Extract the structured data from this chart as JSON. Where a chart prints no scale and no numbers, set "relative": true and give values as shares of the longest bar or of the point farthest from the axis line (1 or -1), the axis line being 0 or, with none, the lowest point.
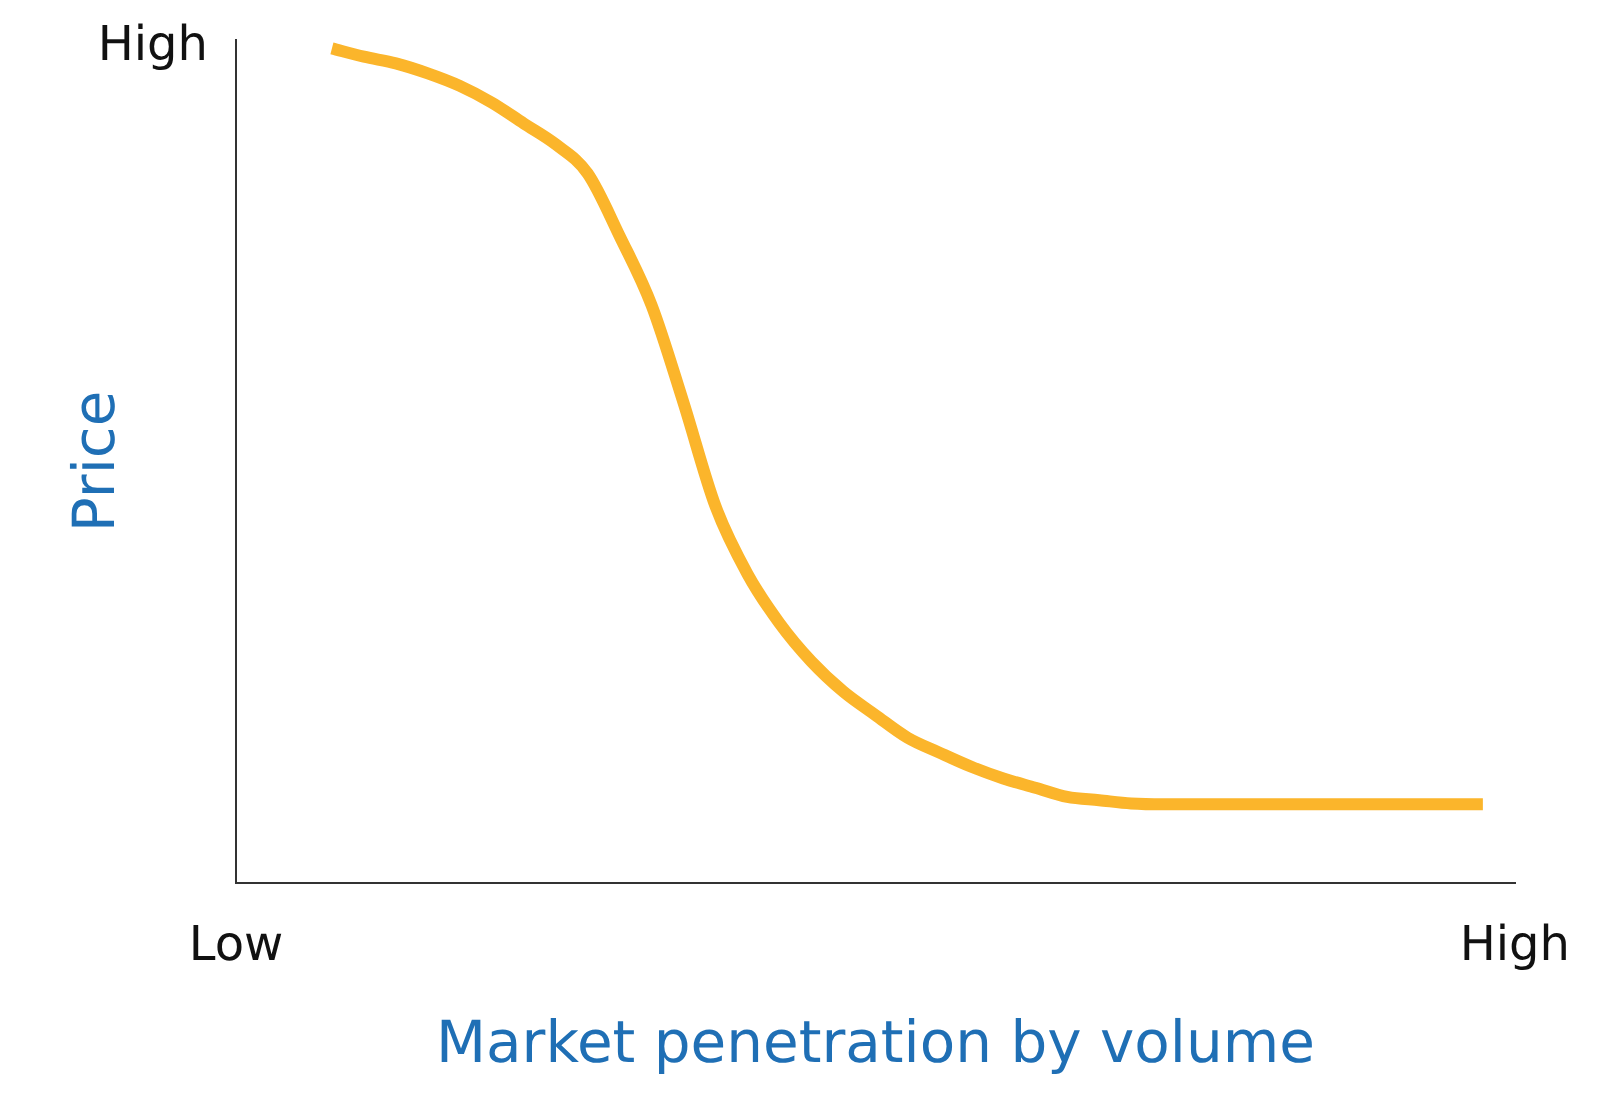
{
  "chart_data": {
    "type": "line",
    "relative": true,
    "xlabel": "Market penetration by volume",
    "ylabel": "Price",
    "annotations": [
      "High"
    ],
    "categories": [
      "Low",
      null,
      null,
      null,
      null,
      null,
      null,
      null,
      null,
      null,
      null,
      null,
      null,
      null,
      null,
      null,
      null,
      null,
      null,
      null,
      null,
      null,
      null,
      null,
      null,
      null,
      null,
      null,
      null,
      null,
      null,
      null,
      null,
      null,
      null,
      null,
      null,
      null,
      null,
      null,
      "High"
    ],
    "series": [
      {
        "color": "#fbb52b",
        "values": [
          null,
          null,
          null,
          1,
          0.99,
          0.982,
          0.97,
          0.955,
          0.935,
          0.91,
          0.885,
          0.85,
          0.775,
          0.692,
          0.575,
          0.451,
          0.37,
          0.311,
          0.265,
          0.229,
          0.201,
          0.174,
          0.156,
          0.139,
          0.125,
          0.114,
          0.103,
          0.099,
          0.095,
          0.094,
          0.094,
          0.094,
          0.094,
          0.094,
          0.094,
          0.094,
          0.094,
          0.094,
          0.094,
          0.094,
          null
        ]
      }
    ],
    "grid": false,
    "legend": false,
    "marker": "none",
    "line_style": "solid"
  }
}
